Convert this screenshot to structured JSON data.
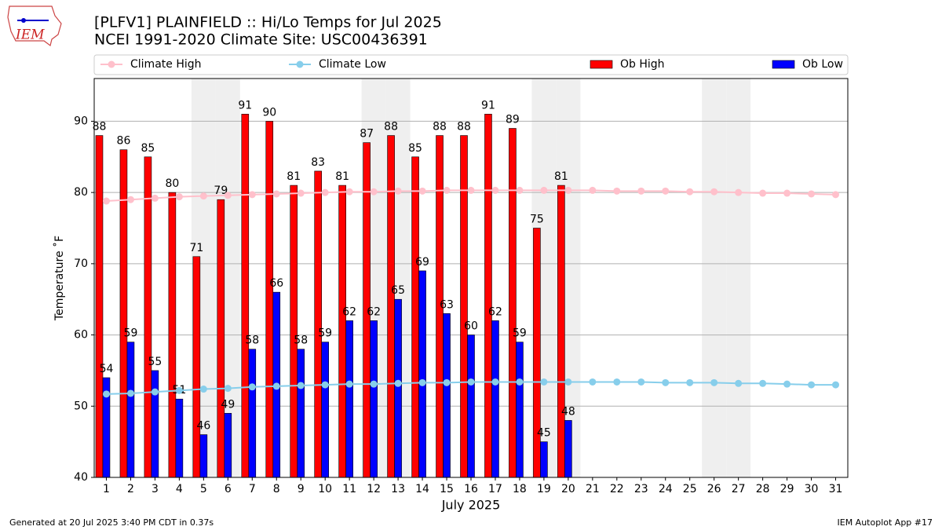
{
  "chart_data": {
    "type": "bar",
    "title": "[PLFV1] PLAINFIELD :: Hi/Lo Temps for Jul 2025",
    "subtitle": "NCEI 1991-2020 Climate Site: USC00436391",
    "logo_text": "IEM",
    "x_label": "July 2025",
    "y_label": "Temperature ˚F",
    "footer_left": "Generated at 20 Jul 2025 3:40 PM CDT in 0.37s",
    "footer_right": "IEM Autoplot App #17",
    "categories": [
      "1",
      "2",
      "3",
      "4",
      "5",
      "6",
      "7",
      "8",
      "9",
      "10",
      "11",
      "12",
      "13",
      "14",
      "15",
      "16",
      "17",
      "18",
      "19",
      "20",
      "21",
      "22",
      "23",
      "24",
      "25",
      "26",
      "27",
      "28",
      "29",
      "30",
      "31"
    ],
    "shaded_categories": [
      "5",
      "6",
      "12",
      "13",
      "19",
      "20",
      "26",
      "27"
    ],
    "ylim": [
      40,
      96
    ],
    "yticks": [
      40,
      50,
      60,
      70,
      80,
      90
    ],
    "grid": true,
    "legend": "top",
    "series": [
      {
        "name": "Climate High",
        "type": "line",
        "color": "#ffc0cb",
        "values": [
          78.8,
          79.0,
          79.2,
          79.4,
          79.5,
          79.6,
          79.7,
          79.8,
          79.9,
          80.0,
          80.1,
          80.1,
          80.2,
          80.2,
          80.3,
          80.3,
          80.3,
          80.3,
          80.3,
          80.3,
          80.3,
          80.2,
          80.2,
          80.2,
          80.1,
          80.1,
          80.0,
          79.9,
          79.9,
          79.8,
          79.7
        ]
      },
      {
        "name": "Climate Low",
        "type": "line",
        "color": "#87ceeb",
        "values": [
          51.7,
          51.8,
          52.0,
          52.2,
          52.4,
          52.5,
          52.7,
          52.8,
          52.9,
          53.0,
          53.1,
          53.1,
          53.2,
          53.3,
          53.3,
          53.4,
          53.4,
          53.4,
          53.4,
          53.4,
          53.4,
          53.4,
          53.4,
          53.3,
          53.3,
          53.3,
          53.2,
          53.2,
          53.1,
          53.0,
          53.0
        ]
      },
      {
        "name": "Ob High",
        "type": "bar",
        "color": "#ff0000",
        "values": [
          88,
          86,
          85,
          80,
          71,
          79,
          91,
          90,
          81,
          83,
          81,
          87,
          88,
          85,
          88,
          88,
          91,
          89,
          75,
          81,
          null,
          null,
          null,
          null,
          null,
          null,
          null,
          null,
          null,
          null,
          null
        ]
      },
      {
        "name": "Ob Low",
        "type": "bar",
        "color": "#0000ff",
        "values": [
          54,
          59,
          55,
          51,
          46,
          49,
          58,
          66,
          58,
          59,
          62,
          62,
          65,
          69,
          63,
          60,
          62,
          59,
          45,
          48,
          null,
          null,
          null,
          null,
          null,
          null,
          null,
          null,
          null,
          null,
          null
        ]
      }
    ]
  }
}
